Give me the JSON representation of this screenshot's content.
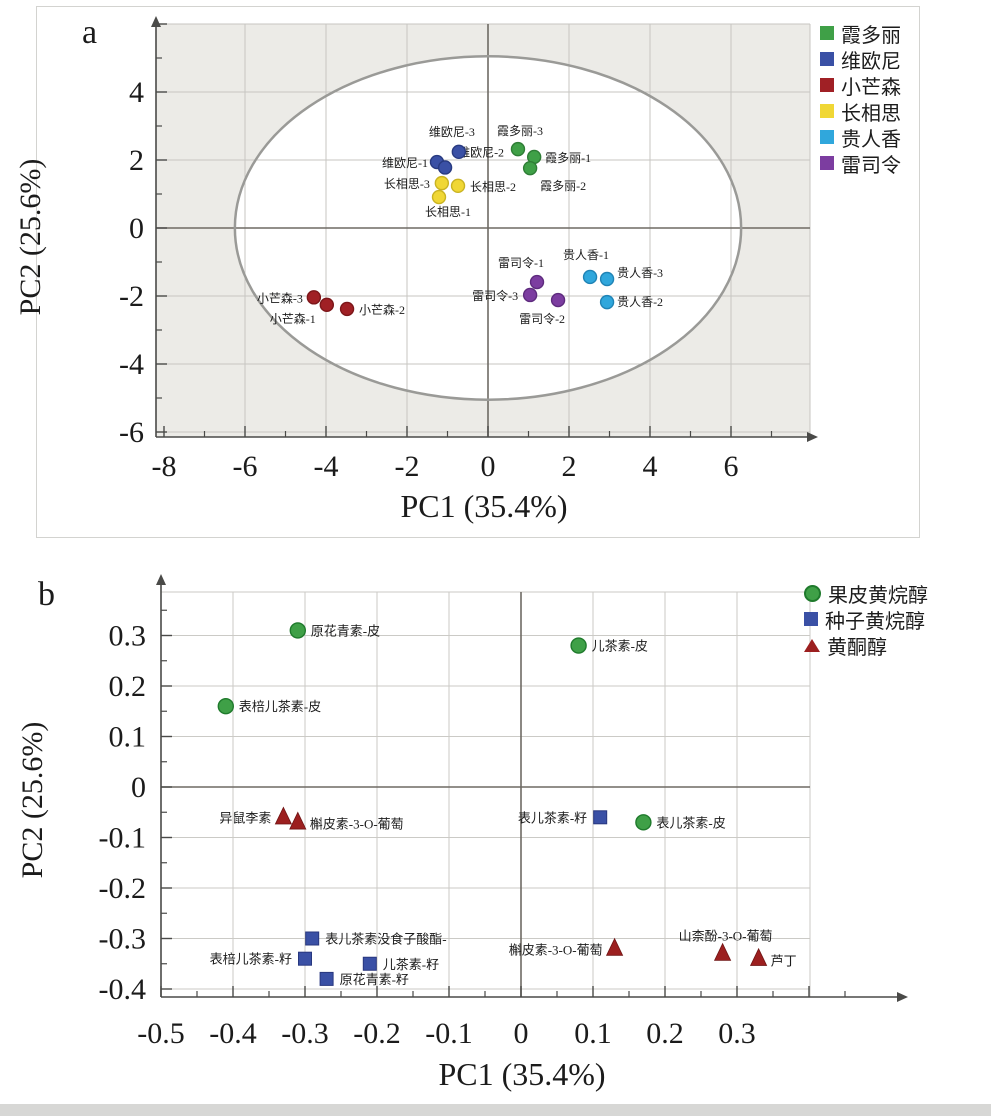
{
  "chart_data": [
    {
      "id": "pca-score-plot",
      "type": "scatter",
      "panel_label": "a",
      "xlabel": "PC1 (35.4%)",
      "ylabel": "PC2 (25.6%)",
      "xlim": [
        -8.2,
        8.0
      ],
      "ylim": [
        -6.2,
        6.0
      ],
      "x_ticks": [
        -8,
        -6,
        -4,
        -2,
        0,
        2,
        4,
        6
      ],
      "y_ticks": [
        4,
        2,
        0,
        -2,
        -4,
        -6
      ],
      "grid": true,
      "legend_position": "outside-top-right",
      "hotelling_ellipse": {
        "cx": 0,
        "cy": 0,
        "rx": 6.25,
        "ry": 5.05
      },
      "series": [
        {
          "name": "霞多丽",
          "marker": "circle",
          "color": "#3fa047",
          "edge": "#2e7d35",
          "label_color": "#79a96b",
          "points": [
            {
              "x": 0.74,
              "y": 2.32,
              "label": "霞多丽-3",
              "anchor": "middle",
              "dx": 2,
              "dy": -14
            },
            {
              "x": 1.14,
              "y": 2.09,
              "label": "霞多丽-1",
              "anchor": "start",
              "dx": 11,
              "dy": 5
            },
            {
              "x": 1.04,
              "y": 1.76,
              "label": "霞多丽-2",
              "anchor": "middle",
              "dx": 33,
              "dy": 22
            }
          ]
        },
        {
          "name": "维欧尼",
          "marker": "circle",
          "color": "#3a50a5",
          "edge": "#283a80",
          "label_color": "#7277b2",
          "points": [
            {
              "x": -1.26,
              "y": 1.94,
              "label": "维欧尼-1",
              "anchor": "end",
              "dx": -9,
              "dy": 5
            },
            {
              "x": -1.06,
              "y": 1.78,
              "label": "维欧尼-2",
              "anchor": "middle",
              "dx": 36,
              "dy": -11
            },
            {
              "x": -0.72,
              "y": 2.24,
              "label": "维欧尼-3",
              "anchor": "middle",
              "dx": -7,
              "dy": -16
            }
          ]
        },
        {
          "name": "小芒森",
          "marker": "circle",
          "color": "#a02025",
          "edge": "#7c1619",
          "label_color": "#b3625f",
          "points": [
            {
              "x": -4.3,
              "y": -2.04,
              "label": "小芒森-3",
              "anchor": "end",
              "dx": -11,
              "dy": 5
            },
            {
              "x": -3.98,
              "y": -2.26,
              "label": "小芒森-1",
              "anchor": "middle",
              "dx": -34,
              "dy": 18
            },
            {
              "x": -3.48,
              "y": -2.38,
              "label": "小芒森-2",
              "anchor": "start",
              "dx": 12,
              "dy": 5
            }
          ]
        },
        {
          "name": "长相思",
          "marker": "circle",
          "color": "#f0d735",
          "edge": "#c9b322",
          "label_color": "#cfc055",
          "points": [
            {
              "x": -1.14,
              "y": 1.32,
              "label": "长相思-3",
              "anchor": "end",
              "dx": -12,
              "dy": 5
            },
            {
              "x": -0.74,
              "y": 1.24,
              "label": "长相思-2",
              "anchor": "start",
              "dx": 12,
              "dy": 5
            },
            {
              "x": -1.21,
              "y": 0.91,
              "label": "长相思-1",
              "anchor": "middle",
              "dx": 9,
              "dy": 19
            }
          ]
        },
        {
          "name": "贵人香",
          "marker": "circle",
          "color": "#30a7dc",
          "edge": "#1f83b5",
          "label_color": "#7db7dc",
          "points": [
            {
              "x": 2.52,
              "y": -1.44,
              "label": "贵人香-1",
              "anchor": "middle",
              "dx": -4,
              "dy": -18
            },
            {
              "x": 2.94,
              "y": -1.5,
              "label": "贵人香-3",
              "anchor": "start",
              "dx": 10,
              "dy": -2
            },
            {
              "x": 2.94,
              "y": -2.18,
              "label": "贵人香-2",
              "anchor": "start",
              "dx": 10,
              "dy": 4
            }
          ]
        },
        {
          "name": "雷司令",
          "marker": "circle",
          "color": "#7c3da0",
          "edge": "#5e2b7e",
          "label_color": "#9a6cb5",
          "points": [
            {
              "x": 1.21,
              "y": -1.59,
              "label": "雷司令-1",
              "anchor": "middle",
              "dx": -16,
              "dy": -15
            },
            {
              "x": 1.04,
              "y": -1.97,
              "label": "雷司令-3",
              "anchor": "end",
              "dx": -12,
              "dy": 5
            },
            {
              "x": 1.73,
              "y": -2.12,
              "label": "雷司令-2",
              "anchor": "middle",
              "dx": -16,
              "dy": 23
            }
          ]
        }
      ]
    },
    {
      "id": "pca-loading-plot",
      "type": "scatter",
      "panel_label": "b",
      "xlabel": "PC1 (35.4%)",
      "ylabel": "PC2 (25.6%)",
      "xlim": [
        -0.5,
        0.42
      ],
      "ylim": [
        -0.42,
        0.39
      ],
      "x_ticks": [
        -0.5,
        -0.4,
        -0.3,
        -0.2,
        -0.1,
        0,
        0.1,
        0.2,
        0.3
      ],
      "y_ticks": [
        0.3,
        0.2,
        0.1,
        0,
        -0.1,
        -0.2,
        -0.3,
        -0.4
      ],
      "grid": true,
      "legend_position": "outside-top-right",
      "series": [
        {
          "name": "果皮黄烷醇",
          "marker": "circle",
          "color": "#3fa047",
          "edge": "#1f7a2c",
          "label_color": "#79a96b",
          "points": [
            {
              "x": -0.31,
              "y": 0.31,
              "label": "原花青素-皮",
              "anchor": "start",
              "dx": 13,
              "dy": 5
            },
            {
              "x": -0.41,
              "y": 0.16,
              "label": "表棓儿茶素-皮",
              "anchor": "start",
              "dx": 13,
              "dy": 5
            },
            {
              "x": 0.08,
              "y": 0.28,
              "label": "儿茶素-皮",
              "anchor": "start",
              "dx": 13,
              "dy": 5
            },
            {
              "x": 0.17,
              "y": -0.07,
              "label": "表儿茶素-皮",
              "anchor": "start",
              "dx": 13,
              "dy": 5
            }
          ]
        },
        {
          "name": "种子黄烷醇",
          "marker": "square",
          "color": "#3a50a5",
          "edge": "#28377f",
          "label_color": "#6b70ad",
          "points": [
            {
              "x": 0.11,
              "y": -0.06,
              "label": "表儿茶素-籽",
              "anchor": "end",
              "dx": -13,
              "dy": 5
            },
            {
              "x": -0.29,
              "y": -0.3,
              "label": "表儿茶素没食子酸酯-",
              "anchor": "start",
              "dx": 13,
              "dy": 5
            },
            {
              "x": -0.3,
              "y": -0.34,
              "label": "表棓儿茶素-籽",
              "anchor": "end",
              "dx": -13,
              "dy": 5
            },
            {
              "x": -0.21,
              "y": -0.35,
              "label": "儿茶素-籽",
              "anchor": "start",
              "dx": 13,
              "dy": 5
            },
            {
              "x": -0.27,
              "y": -0.38,
              "label": "原花青素-籽",
              "anchor": "start",
              "dx": 13,
              "dy": 5
            }
          ]
        },
        {
          "name": "黄酮醇",
          "marker": "triangle",
          "color": "#9c1f1f",
          "edge": "#6f1414",
          "label_color": "#a55a50",
          "points": [
            {
              "x": -0.33,
              "y": -0.06,
              "label": "异鼠李素",
              "anchor": "end",
              "dx": -12,
              "dy": 5
            },
            {
              "x": -0.31,
              "y": -0.07,
              "label": "槲皮素-3-O-葡萄",
              "anchor": "start",
              "dx": 12,
              "dy": 6
            },
            {
              "x": 0.13,
              "y": -0.32,
              "label": "槲皮素-3-O-葡萄",
              "anchor": "end",
              "dx": -12,
              "dy": 6
            },
            {
              "x": 0.28,
              "y": -0.33,
              "label": "山柰酚-3-O-葡萄",
              "anchor": "middle",
              "dx": 3,
              "dy": -13
            },
            {
              "x": 0.33,
              "y": -0.34,
              "label": "芦丁",
              "anchor": "start",
              "dx": 12,
              "dy": 7
            }
          ]
        }
      ]
    }
  ]
}
